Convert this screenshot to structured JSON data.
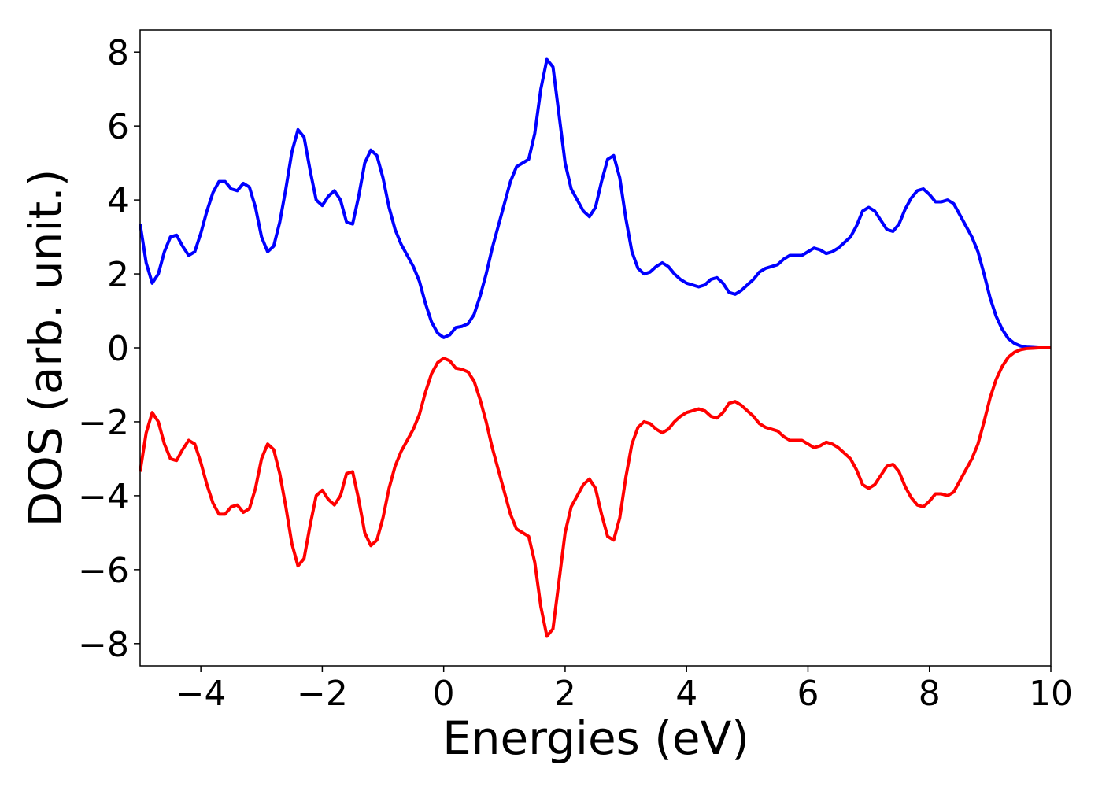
{
  "chart_data": {
    "type": "line",
    "xlabel": "Energies (eV)",
    "ylabel": "DOS (arb. unit.)",
    "xlim": [
      -5,
      10
    ],
    "ylim": [
      -8.6,
      8.6
    ],
    "xticks": [
      {
        "value": -4,
        "label": "−4"
      },
      {
        "value": -2,
        "label": "−2"
      },
      0,
      2,
      4,
      6,
      8,
      10
    ],
    "yticks": [
      {
        "value": -8,
        "label": "−8"
      },
      {
        "value": -6,
        "label": "−6"
      },
      {
        "value": -4,
        "label": "−4"
      },
      {
        "value": -2,
        "label": "−2"
      },
      0,
      2,
      4,
      6,
      8
    ],
    "x": [
      -5,
      -4.9,
      -4.8,
      -4.7,
      -4.6,
      -4.5,
      -4.4,
      -4.3,
      -4.2,
      -4.1,
      -4,
      -3.9,
      -3.8,
      -3.7,
      -3.6,
      -3.5,
      -3.4,
      -3.3,
      -3.2,
      -3.1,
      -3,
      -2.9,
      -2.8,
      -2.7,
      -2.6,
      -2.5,
      -2.4,
      -2.3,
      -2.2,
      -2.1,
      -2,
      -1.9,
      -1.8,
      -1.7,
      -1.6,
      -1.5,
      -1.4,
      -1.3,
      -1.2,
      -1.1,
      -1,
      -0.9,
      -0.8,
      -0.7,
      -0.6,
      -0.5,
      -0.4,
      -0.3,
      -0.2,
      -0.1,
      0,
      0.1,
      0.2,
      0.3,
      0.4,
      0.5,
      0.6,
      0.7,
      0.8,
      0.9,
      1,
      1.1,
      1.2,
      1.3,
      1.4,
      1.5,
      1.6,
      1.7,
      1.8,
      1.9,
      2,
      2.1,
      2.2,
      2.3,
      2.4,
      2.5,
      2.6,
      2.7,
      2.8,
      2.9,
      3,
      3.1,
      3.2,
      3.3,
      3.4,
      3.5,
      3.6,
      3.7,
      3.8,
      3.9,
      4,
      4.1,
      4.2,
      4.3,
      4.4,
      4.5,
      4.6,
      4.7,
      4.8,
      4.9,
      5,
      5.1,
      5.2,
      5.3,
      5.4,
      5.5,
      5.6,
      5.7,
      5.8,
      5.9,
      6,
      6.1,
      6.2,
      6.3,
      6.4,
      6.5,
      6.6,
      6.7,
      6.8,
      6.9,
      7,
      7.1,
      7.2,
      7.3,
      7.4,
      7.5,
      7.6,
      7.7,
      7.8,
      7.9,
      8,
      8.1,
      8.2,
      8.3,
      8.4,
      8.5,
      8.6,
      8.7,
      8.8,
      8.9,
      9,
      9.1,
      9.2,
      9.3,
      9.4,
      9.5,
      9.6,
      9.7,
      9.8,
      9.9,
      10
    ],
    "series": [
      {
        "color": "#0000ff",
        "values": [
          3.35,
          2.3,
          1.75,
          2.0,
          2.6,
          3.0,
          3.05,
          2.75,
          2.5,
          2.6,
          3.1,
          3.7,
          4.2,
          4.5,
          4.5,
          4.3,
          4.25,
          4.45,
          4.35,
          3.8,
          3.0,
          2.6,
          2.75,
          3.4,
          4.3,
          5.3,
          5.9,
          5.7,
          4.8,
          4.0,
          3.85,
          4.1,
          4.25,
          4.0,
          3.4,
          3.35,
          4.1,
          5.0,
          5.35,
          5.2,
          4.6,
          3.8,
          3.2,
          2.8,
          2.5,
          2.2,
          1.8,
          1.2,
          0.7,
          0.4,
          0.28,
          0.35,
          0.55,
          0.58,
          0.65,
          0.9,
          1.4,
          2.0,
          2.7,
          3.3,
          3.9,
          4.5,
          4.9,
          5.0,
          5.1,
          5.8,
          7.0,
          7.8,
          7.6,
          6.3,
          5.0,
          4.3,
          4.0,
          3.7,
          3.55,
          3.8,
          4.5,
          5.1,
          5.2,
          4.6,
          3.5,
          2.6,
          2.15,
          2.0,
          2.05,
          2.2,
          2.3,
          2.2,
          2.0,
          1.85,
          1.75,
          1.7,
          1.65,
          1.7,
          1.85,
          1.9,
          1.75,
          1.5,
          1.45,
          1.55,
          1.7,
          1.85,
          2.05,
          2.15,
          2.2,
          2.25,
          2.4,
          2.5,
          2.5,
          2.5,
          2.6,
          2.7,
          2.65,
          2.55,
          2.6,
          2.7,
          2.85,
          3.0,
          3.3,
          3.7,
          3.8,
          3.7,
          3.45,
          3.2,
          3.15,
          3.35,
          3.75,
          4.05,
          4.25,
          4.3,
          4.15,
          3.95,
          3.95,
          4.0,
          3.9,
          3.6,
          3.3,
          3.0,
          2.6,
          2.0,
          1.35,
          0.85,
          0.5,
          0.25,
          0.12,
          0.05,
          0.02,
          0.01,
          0,
          0,
          0
        ]
      },
      {
        "color": "#ff0000",
        "values": [
          -3.35,
          -2.3,
          -1.75,
          -2.0,
          -2.6,
          -3.0,
          -3.05,
          -2.75,
          -2.5,
          -2.6,
          -3.1,
          -3.7,
          -4.2,
          -4.5,
          -4.5,
          -4.3,
          -4.25,
          -4.45,
          -4.35,
          -3.8,
          -3.0,
          -2.6,
          -2.75,
          -3.4,
          -4.3,
          -5.3,
          -5.9,
          -5.7,
          -4.8,
          -4.0,
          -3.85,
          -4.1,
          -4.25,
          -4.0,
          -3.4,
          -3.35,
          -4.1,
          -5.0,
          -5.35,
          -5.2,
          -4.6,
          -3.8,
          -3.2,
          -2.8,
          -2.5,
          -2.2,
          -1.8,
          -1.2,
          -0.7,
          -0.4,
          -0.28,
          -0.35,
          -0.55,
          -0.58,
          -0.65,
          -0.9,
          -1.4,
          -2.0,
          -2.7,
          -3.3,
          -3.9,
          -4.5,
          -4.9,
          -5.0,
          -5.1,
          -5.8,
          -7.0,
          -7.8,
          -7.6,
          -6.3,
          -5.0,
          -4.3,
          -4.0,
          -3.7,
          -3.55,
          -3.8,
          -4.5,
          -5.1,
          -5.2,
          -4.6,
          -3.5,
          -2.6,
          -2.15,
          -2.0,
          -2.05,
          -2.2,
          -2.3,
          -2.2,
          -2.0,
          -1.85,
          -1.75,
          -1.7,
          -1.65,
          -1.7,
          -1.85,
          -1.9,
          -1.75,
          -1.5,
          -1.45,
          -1.55,
          -1.7,
          -1.85,
          -2.05,
          -2.15,
          -2.2,
          -2.25,
          -2.4,
          -2.5,
          -2.5,
          -2.5,
          -2.6,
          -2.7,
          -2.65,
          -2.55,
          -2.6,
          -2.7,
          -2.85,
          -3.0,
          -3.3,
          -3.7,
          -3.8,
          -3.7,
          -3.45,
          -3.2,
          -3.15,
          -3.35,
          -3.75,
          -4.05,
          -4.25,
          -4.3,
          -4.15,
          -3.95,
          -3.95,
          -4.0,
          -3.9,
          -3.6,
          -3.3,
          -3.0,
          -2.6,
          -2.0,
          -1.35,
          -0.85,
          -0.5,
          -0.25,
          -0.12,
          -0.05,
          -0.02,
          -0.01,
          0,
          0,
          0
        ]
      }
    ]
  }
}
